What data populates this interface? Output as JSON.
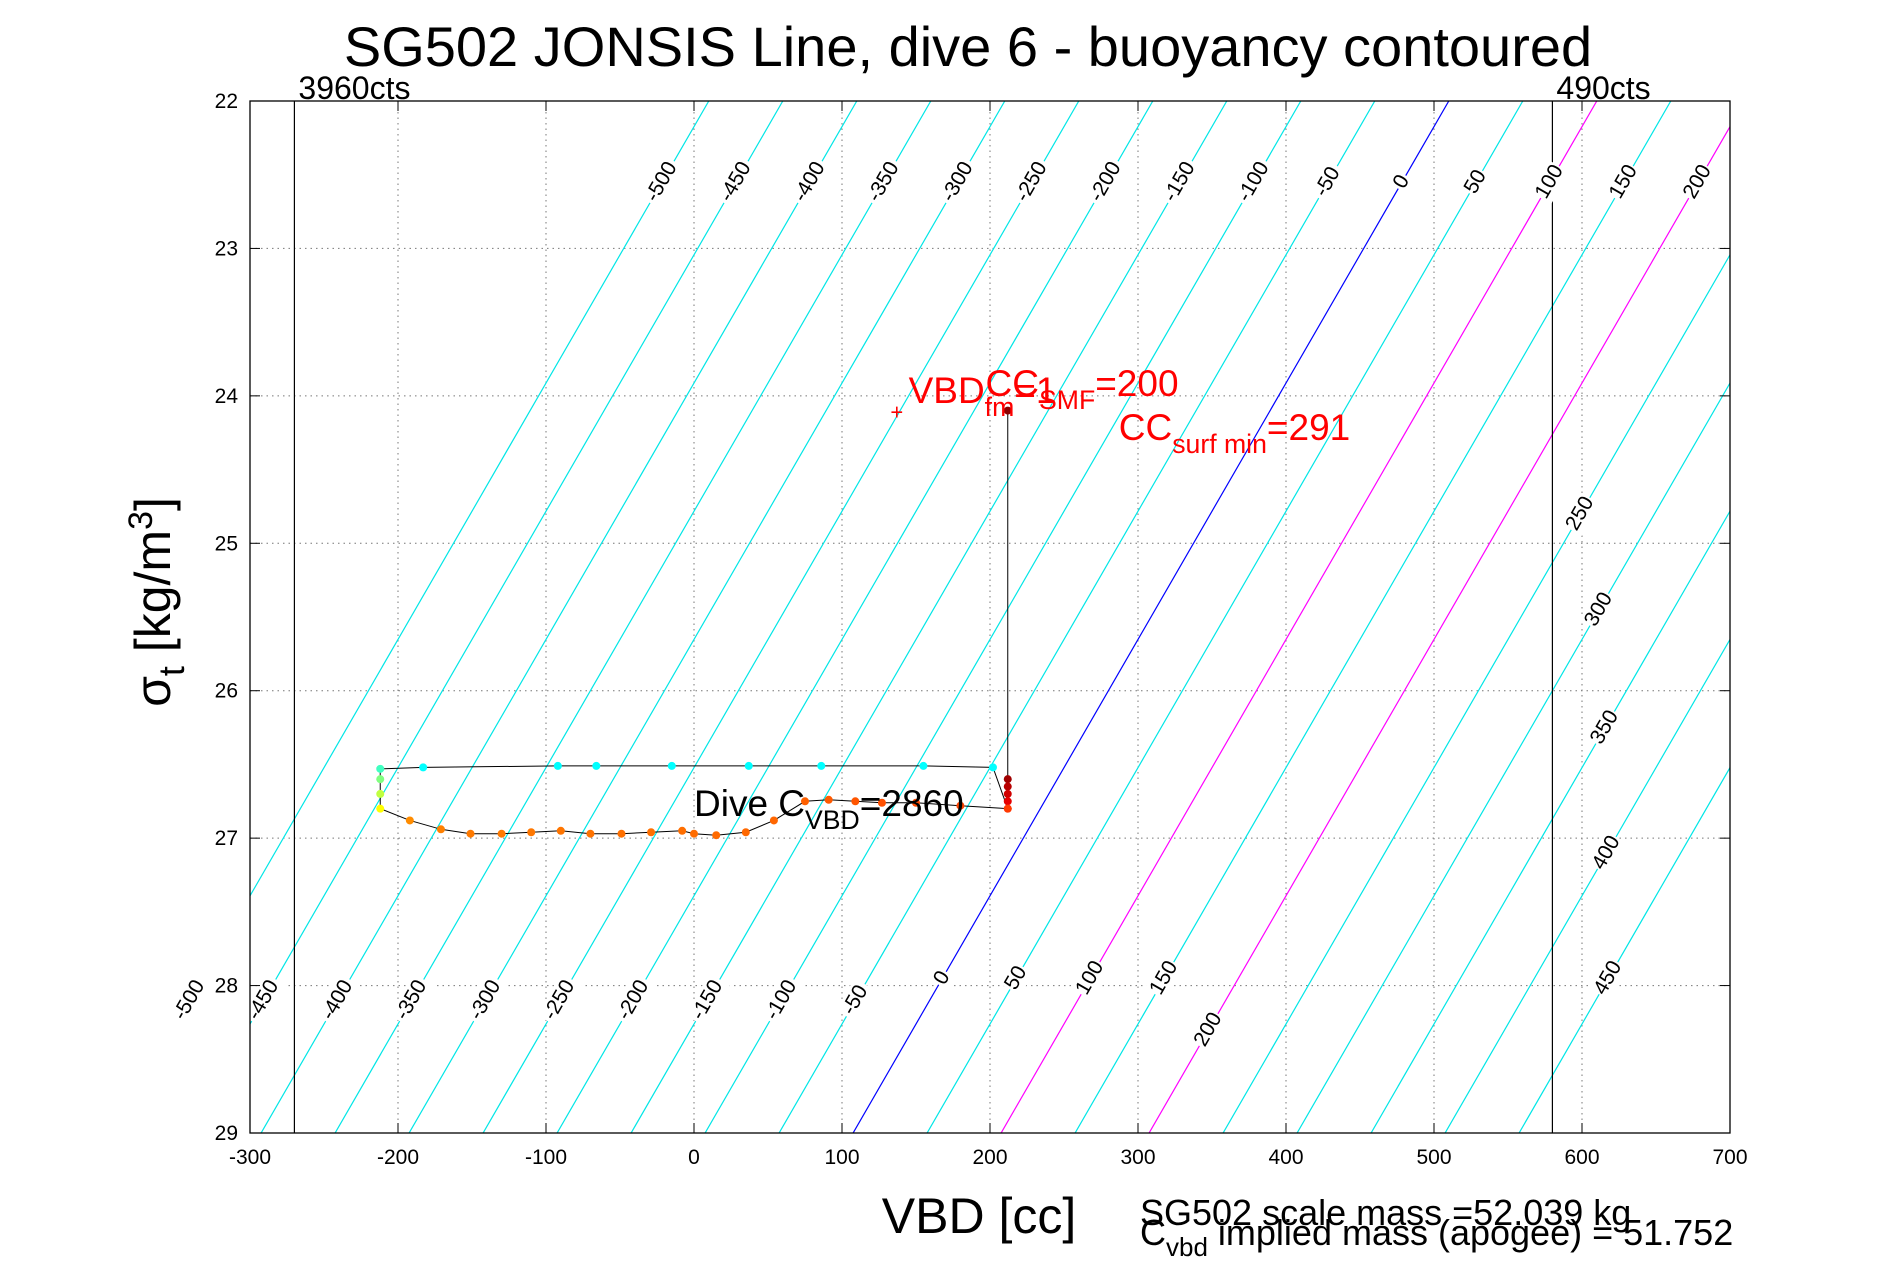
{
  "chart_data": {
    "type": "line",
    "title": "SG502 JONSIS Line, dive 6 - buoyancy contoured",
    "xlabel": "VBD [cc]",
    "ylabel": "σt [kg/m³]",
    "ylabel_parts": {
      "sym": "σ",
      "sub": "t",
      "units_pre": " [kg/m",
      "units_sup": "3",
      "units_post": "]"
    },
    "xlim": [
      -300,
      700
    ],
    "ylim": [
      22,
      29
    ],
    "y_reversed": true,
    "grid": true,
    "x_ticks": [
      -300,
      -200,
      -100,
      0,
      100,
      200,
      300,
      400,
      500,
      600,
      700
    ],
    "y_ticks": [
      22,
      23,
      24,
      25,
      26,
      27,
      28,
      29
    ],
    "vertical_lines": [
      {
        "x": -270,
        "label": "3960cts"
      },
      {
        "x": 580,
        "label": "490cts"
      }
    ],
    "buoyancy_contours": {
      "slope_cc_per_sigma": 57.5,
      "zero_x_at_sigma22": 510,
      "levels": [
        -500,
        -450,
        -400,
        -350,
        -300,
        -250,
        -200,
        -150,
        -100,
        -50,
        0,
        50,
        100,
        150,
        200,
        250,
        300,
        350,
        400,
        450
      ],
      "colors": {
        "default": "#00e6e6",
        "zero": "#0000ff",
        "highlight": "#ff00ff"
      },
      "highlight_levels": [
        100,
        200
      ],
      "top_labels": [
        -500,
        -450,
        -400,
        -350,
        -300,
        -250,
        -200,
        -150,
        -100,
        -50,
        0,
        50,
        100,
        150,
        200
      ],
      "right_labels": [
        250,
        300,
        350,
        400,
        450
      ],
      "bottom_labels": [
        -500,
        -450,
        -400,
        -350,
        -300,
        -250,
        -200,
        -150,
        -100,
        -50,
        0,
        50,
        100,
        150,
        200
      ]
    },
    "series": [
      {
        "points": [
          [
            212,
            24.1
          ],
          [
            212,
            26.6
          ],
          [
            212,
            26.65
          ],
          [
            212,
            26.7
          ],
          [
            212,
            26.75
          ],
          [
            212,
            26.8
          ],
          [
            202,
            26.52
          ],
          [
            155,
            26.51
          ],
          [
            86,
            26.51
          ],
          [
            37,
            26.51
          ],
          [
            -15,
            26.51
          ],
          [
            -66,
            26.51
          ],
          [
            -92,
            26.51
          ],
          [
            -183,
            26.52
          ],
          [
            -212,
            26.53
          ],
          [
            -212,
            26.6
          ],
          [
            -212,
            26.7
          ],
          [
            -212,
            26.8
          ],
          [
            -192,
            26.88
          ],
          [
            -171,
            26.94
          ],
          [
            -151,
            26.97
          ],
          [
            -130,
            26.97
          ],
          [
            -110,
            26.96
          ],
          [
            -90,
            26.95
          ],
          [
            -70,
            26.97
          ],
          [
            -49,
            26.97
          ],
          [
            -29,
            26.96
          ],
          [
            -8,
            26.95
          ],
          [
            0,
            26.97
          ],
          [
            15,
            26.98
          ],
          [
            35,
            26.96
          ],
          [
            54,
            26.88
          ],
          [
            75,
            26.75
          ],
          [
            91,
            26.74
          ],
          [
            109,
            26.75
          ],
          [
            127,
            26.76
          ],
          [
            150,
            26.76
          ],
          [
            180,
            26.78
          ],
          [
            212,
            26.8
          ]
        ],
        "point_colors": [
          "#8b0000",
          "#a00000",
          "#b80000",
          "#d00000",
          "#e60000",
          "#ff0000",
          "#00ffff",
          "#00ffff",
          "#00ffff",
          "#00ffff",
          "#00ffff",
          "#00ffff",
          "#00ffff",
          "#00ffff",
          "#40ffc0",
          "#80ff80",
          "#c0ff40",
          "#ffff00",
          "#ff8c00",
          "#ff8000",
          "#ff7a00",
          "#ff7a00",
          "#ff7700",
          "#ff7500",
          "#ff7300",
          "#ff7000",
          "#ff7000",
          "#ff6e00",
          "#ff6c00",
          "#ff6a00",
          "#ff6800",
          "#ff6600",
          "#ff6000",
          "#ff5a00",
          "#ff5500",
          "#ff5000",
          "#ff4a00",
          "#ff4400",
          "#ff3a00"
        ]
      }
    ],
    "annotations": {
      "red_marker": {
        "x": 137,
        "y": 24.12
      },
      "vbd_label": {
        "x": 145,
        "y": 24.05,
        "main": "VBD",
        "sub": "fm",
        "tail": "=1"
      },
      "cc_label": {
        "x": 197,
        "y": 24.0,
        "main": "CC",
        "sub": "SMF",
        "tail": "=200"
      },
      "cc_surf": {
        "x": 287,
        "y": 24.3,
        "main": "CC",
        "sub": "surf min",
        "tail": "=291"
      },
      "dive": {
        "x": 0,
        "y": 26.85,
        "main": "Dive C",
        "sub": "VBD",
        "tail": "=2860"
      }
    },
    "bottom_text_1": "SG502 scale mass =52.039 kg",
    "bottom_text_2": {
      "main": "C",
      "sub": "vbd",
      "tail": " implied mass (apogee) = 51.752"
    }
  }
}
